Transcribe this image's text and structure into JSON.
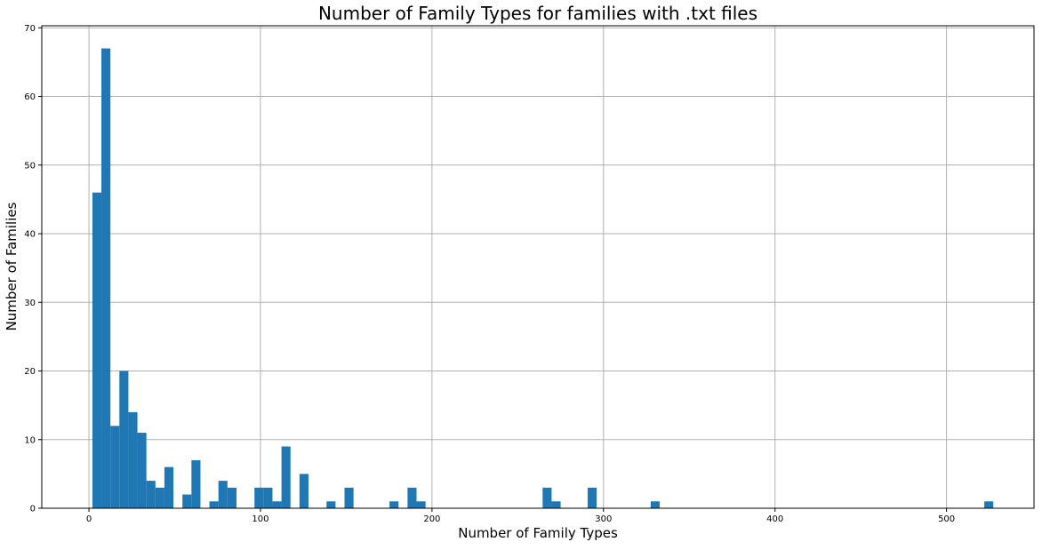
{
  "chart_data": {
    "type": "bar",
    "title": "Number of Family Types for families with .txt files",
    "xlabel": "Number of Family Types",
    "ylabel": "Number of Families",
    "xlim": [
      -27.5,
      551
    ],
    "ylim": [
      0,
      70.3
    ],
    "x_ticks": [
      0,
      100,
      200,
      300,
      400,
      500
    ],
    "y_ticks": [
      0,
      10,
      20,
      30,
      40,
      50,
      60,
      70
    ],
    "grid": true,
    "legend": "none",
    "bar_color": "#1f77b4",
    "grid_color": "#b0b0b0",
    "bin_width": 5.25,
    "bins": [
      {
        "x0": 2.0,
        "count": 46
      },
      {
        "x0": 7.25,
        "count": 67
      },
      {
        "x0": 12.5,
        "count": 12
      },
      {
        "x0": 17.75,
        "count": 20
      },
      {
        "x0": 23.0,
        "count": 14
      },
      {
        "x0": 28.25,
        "count": 11
      },
      {
        "x0": 33.5,
        "count": 4
      },
      {
        "x0": 38.75,
        "count": 3
      },
      {
        "x0": 44.0,
        "count": 6
      },
      {
        "x0": 54.5,
        "count": 2
      },
      {
        "x0": 59.75,
        "count": 7
      },
      {
        "x0": 70.25,
        "count": 1
      },
      {
        "x0": 75.5,
        "count": 4
      },
      {
        "x0": 80.75,
        "count": 3
      },
      {
        "x0": 96.5,
        "count": 3
      },
      {
        "x0": 101.75,
        "count": 3
      },
      {
        "x0": 107.0,
        "count": 1
      },
      {
        "x0": 112.25,
        "count": 9
      },
      {
        "x0": 122.75,
        "count": 5
      },
      {
        "x0": 138.5,
        "count": 1
      },
      {
        "x0": 149.0,
        "count": 3
      },
      {
        "x0": 175.25,
        "count": 1
      },
      {
        "x0": 185.75,
        "count": 3
      },
      {
        "x0": 191.0,
        "count": 1
      },
      {
        "x0": 264.5,
        "count": 3
      },
      {
        "x0": 269.75,
        "count": 1
      },
      {
        "x0": 290.75,
        "count": 3
      },
      {
        "x0": 327.5,
        "count": 1
      },
      {
        "x0": 522.0,
        "count": 1
      }
    ]
  }
}
